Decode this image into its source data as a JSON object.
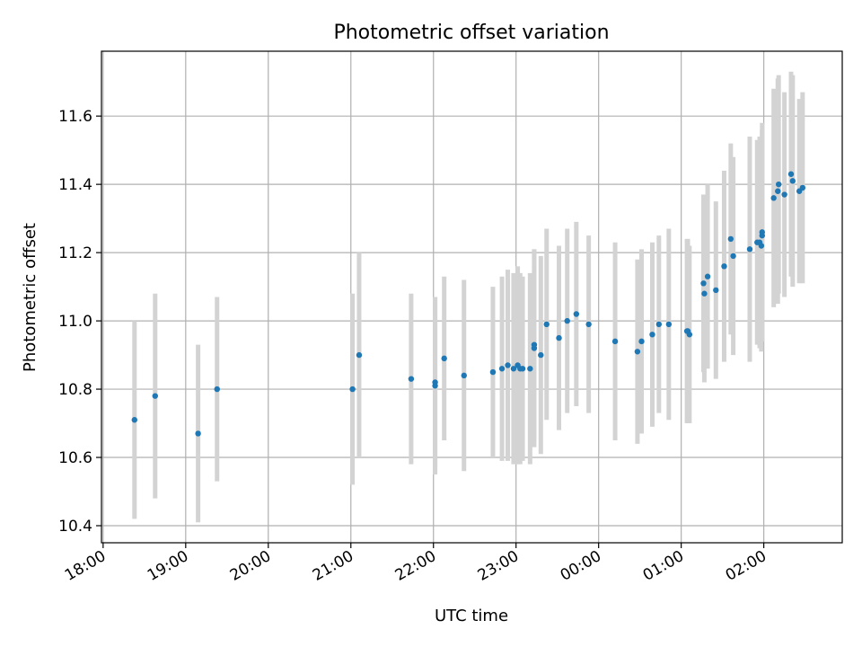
{
  "chart_data": {
    "type": "scatter",
    "title": "Photometric offset variation",
    "xlabel": "UTC time",
    "ylabel": "Photometric offset",
    "grid": true,
    "x_tick_labels": [
      "18:00",
      "19:00",
      "20:00",
      "21:00",
      "22:00",
      "23:00",
      "00:00",
      "01:00",
      "02:00"
    ],
    "y_tick_labels": [
      "10.4",
      "10.6",
      "10.8",
      "11.0",
      "11.2",
      "11.4",
      "11.6"
    ],
    "y_ticks": [
      10.4,
      10.6,
      10.8,
      11.0,
      11.2,
      11.4,
      11.6
    ],
    "ylim": [
      10.35,
      11.79
    ],
    "xlim_hours": [
      17.98,
      26.95
    ],
    "x_ticks_hours": [
      18,
      19,
      20,
      21,
      22,
      23,
      24,
      25,
      26
    ],
    "marker_color": "#1f77b4",
    "errorbar_color": "#d3d3d3",
    "series": [
      {
        "x_hours": [
          18.38,
          18.63,
          19.15,
          19.38,
          21.02,
          21.1,
          21.73,
          22.02,
          22.02,
          22.13,
          22.37,
          22.72,
          22.83,
          22.9,
          22.97,
          23.02,
          23.05,
          23.08,
          23.17,
          23.22,
          23.22,
          23.3,
          23.37,
          23.52,
          23.62,
          23.73,
          23.88,
          24.2,
          24.47,
          24.52,
          24.65,
          24.73,
          24.85,
          25.07,
          25.08,
          25.1,
          25.27,
          25.28,
          25.32,
          25.42,
          25.52,
          25.6,
          25.63,
          25.83,
          25.92,
          25.95,
          25.97,
          25.98,
          25.98,
          26.12,
          26.17,
          26.18,
          26.25,
          26.33,
          26.35,
          26.43,
          26.47
        ],
        "y": [
          10.71,
          10.78,
          10.67,
          10.8,
          10.8,
          10.9,
          10.83,
          10.81,
          10.82,
          10.89,
          10.84,
          10.85,
          10.86,
          10.87,
          10.86,
          10.87,
          10.86,
          10.86,
          10.86,
          10.92,
          10.93,
          10.9,
          10.99,
          10.95,
          11.0,
          11.02,
          10.99,
          10.94,
          10.91,
          10.94,
          10.96,
          10.99,
          10.99,
          10.97,
          10.97,
          10.96,
          11.11,
          11.08,
          11.13,
          11.09,
          11.16,
          11.24,
          11.19,
          11.21,
          11.23,
          11.23,
          11.22,
          11.25,
          11.26,
          11.36,
          11.38,
          11.4,
          11.37,
          11.43,
          11.41,
          11.38,
          11.39
        ],
        "err": [
          0.29,
          0.3,
          0.26,
          0.27,
          0.28,
          0.3,
          0.25,
          0.26,
          0.25,
          0.24,
          0.28,
          0.25,
          0.27,
          0.28,
          0.28,
          0.29,
          0.28,
          0.27,
          0.28,
          0.29,
          0.28,
          0.29,
          0.28,
          0.27,
          0.27,
          0.27,
          0.26,
          0.29,
          0.27,
          0.27,
          0.27,
          0.26,
          0.28,
          0.27,
          0.27,
          0.26,
          0.26,
          0.26,
          0.27,
          0.26,
          0.28,
          0.28,
          0.29,
          0.33,
          0.3,
          0.31,
          0.31,
          0.31,
          0.32,
          0.32,
          0.33,
          0.32,
          0.3,
          0.3,
          0.31,
          0.27,
          0.28
        ]
      }
    ]
  }
}
